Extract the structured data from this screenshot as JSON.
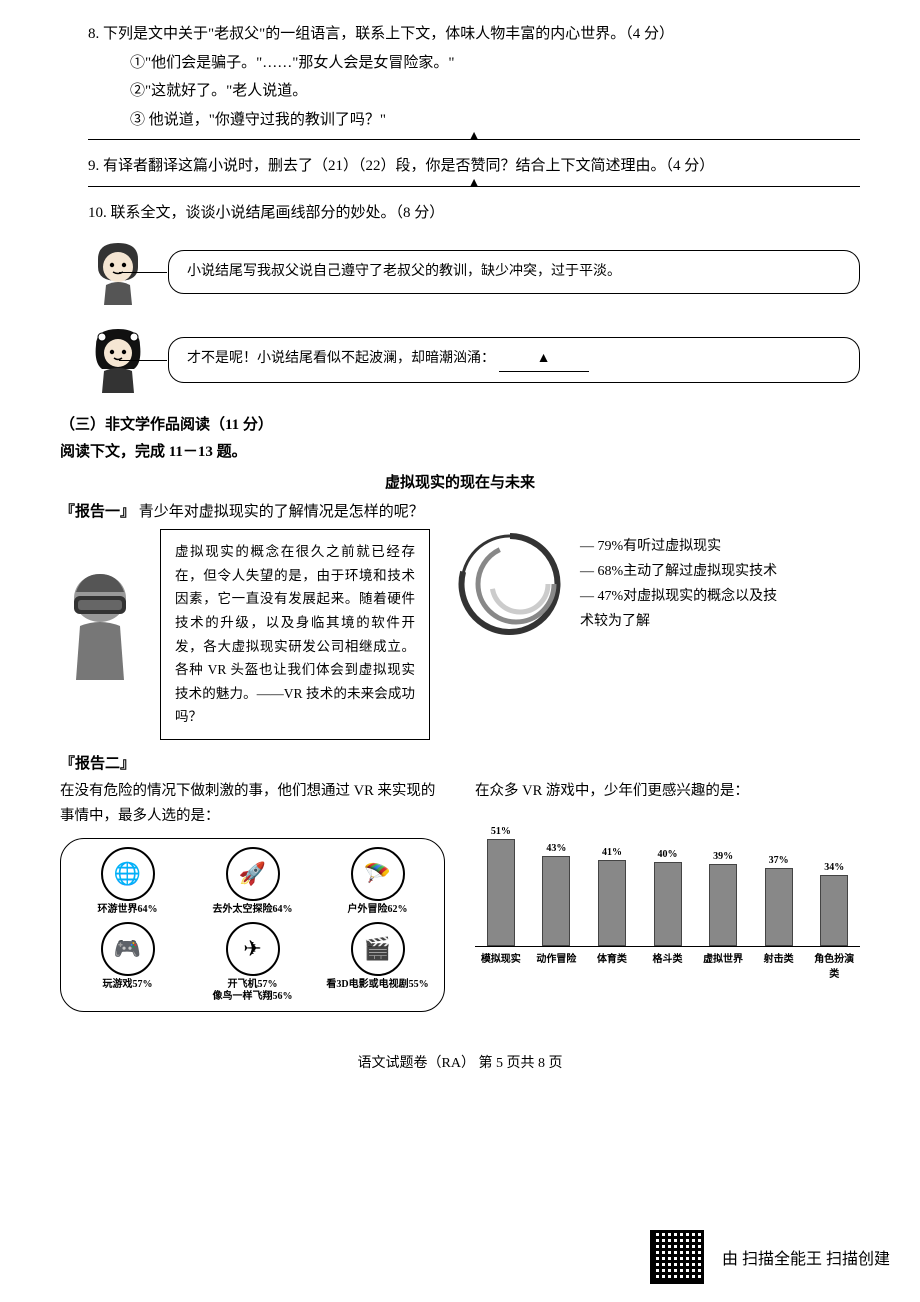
{
  "q8": {
    "text": "8. 下列是文中关于\"老叔父\"的一组语言，联系上下文，体味人物丰富的内心世界。（4 分）",
    "lines": [
      "①\"他们会是骗子。\"……\"那女人会是女冒险家。\"",
      "②\"这就好了。\"老人说道。",
      "③ 他说道，\"你遵守过我的教训了吗？\""
    ]
  },
  "q9": {
    "text": "9. 有译者翻译这篇小说时，删去了（21）（22）段，你是否赞同？结合上下文简述理由。（4 分）"
  },
  "q10": {
    "text": "10.  联系全文，谈谈小说结尾画线部分的妙处。（8 分）",
    "bubble1": "小说结尾写我叔父说自己遵守了老叔父的教训，缺少冲突，过于平淡。",
    "bubble2_prefix": "才不是呢！小说结尾看似不起波澜，却暗潮汹涌：",
    "bubble2_blank": "▲"
  },
  "section3": {
    "heading": "（三）非文学作品阅读（11 分）",
    "sub": "阅读下文，完成 11－13 题。",
    "title": "虚拟现实的现在与未来",
    "report1_label": "『报告一』",
    "report1_q": "青少年对虚拟现实的了解情况是怎样的呢？",
    "vr_text": "虚拟现实的概念在很久之前就已经存在，但令人失望的是，由于环境和技术因素，它一直没有发展起来。随着硬件技术的升级，以及身临其境的软件开发，各大虚拟现实研发公司相继成立。各种 VR 头盔也让我们体会到虚拟现实技术的魅力。——VR 技术的未来会成功吗？",
    "ring": {
      "items": [
        "79%有听过虚拟现实",
        "68%主动了解过虚拟现实技术",
        "47%对虚拟现实的概念以及技术较为了解"
      ],
      "colors": {
        "outer": "#333333",
        "mid": "#888888",
        "inner": "#cccccc"
      }
    },
    "report2_label": "『报告二』",
    "col1_intro": "在没有危险的情况下做刺激的事，他们想通过 VR 来实现的事情中，最多人选的是：",
    "col2_intro": "在众多 VR 游戏中，少年们更感兴趣的是：",
    "icons": [
      {
        "glyph": "🌐",
        "label": "环游世界64%"
      },
      {
        "glyph": "🚀",
        "label": "去外太空探险64%"
      },
      {
        "glyph": "🪂",
        "label": "户外冒险62%"
      },
      {
        "glyph": "🎮",
        "label": "玩游戏57%"
      },
      {
        "glyph": "✈",
        "label": "开飞机57%\n像鸟一样飞翔56%"
      },
      {
        "glyph": "🎬",
        "label": "看3D电影或电视剧55%"
      }
    ],
    "bar_chart": {
      "type": "bar",
      "ylim": [
        0,
        55
      ],
      "bar_color": "#888888",
      "categories": [
        "模拟现实",
        "动作冒险",
        "体育类",
        "格斗类",
        "虚拟世界",
        "射击类",
        "角色扮演类"
      ],
      "values": [
        51,
        43,
        41,
        40,
        39,
        37,
        34
      ]
    }
  },
  "footer": {
    "page": "语文试题卷（RA）  第 5 页共 8 页",
    "scan": "由  扫描全能王  扫描创建"
  },
  "triangle": "▲"
}
